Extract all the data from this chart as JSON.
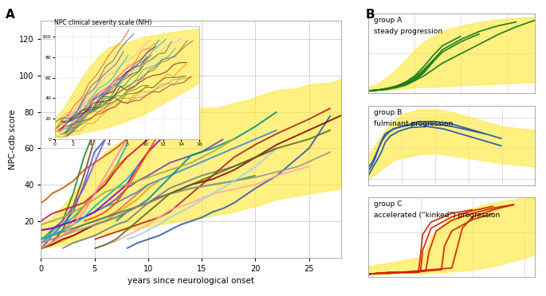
{
  "title_A": "A",
  "title_B": "B",
  "xlabel": "years since neurological onset",
  "ylabel": "NPC-cdb score",
  "xlim": [
    0,
    28
  ],
  "ylim": [
    0,
    130
  ],
  "yticks": [
    20,
    40,
    60,
    80,
    100,
    120
  ],
  "xticks": [
    0,
    5,
    10,
    15,
    20,
    25
  ],
  "inset_title": "NPC clinical severity scale (NIH)",
  "yellow_color": "#FFE840",
  "yellow_alpha": 0.65,
  "group_A_color": "#1A7A1A",
  "group_B_color": "#2255AA",
  "group_C_color": "#CC2200",
  "main_lines": [
    {
      "x": [
        0,
        0.5,
        1,
        2,
        3,
        4,
        5
      ],
      "y": [
        5,
        6,
        8,
        15,
        28,
        45,
        65
      ],
      "color": "#8B4513",
      "lw": 1.4
    },
    {
      "x": [
        0,
        0.5,
        1,
        2,
        3,
        4,
        5
      ],
      "y": [
        10,
        12,
        15,
        20,
        35,
        55,
        70
      ],
      "color": "#228B22",
      "lw": 1.4
    },
    {
      "x": [
        0,
        0.5,
        1,
        2,
        3,
        4,
        5,
        6
      ],
      "y": [
        5,
        8,
        12,
        18,
        25,
        40,
        58,
        65
      ],
      "color": "#3366CC",
      "lw": 1.4
    },
    {
      "x": [
        0,
        0.5,
        1,
        2,
        3,
        4,
        5,
        6,
        7
      ],
      "y": [
        8,
        10,
        14,
        20,
        28,
        38,
        52,
        65,
        70
      ],
      "color": "#8855CC",
      "lw": 1.4
    },
    {
      "x": [
        0,
        0.5,
        1,
        2,
        3,
        4,
        5,
        6,
        7,
        8
      ],
      "y": [
        10,
        12,
        15,
        18,
        22,
        28,
        35,
        40,
        50,
        62
      ],
      "color": "#20B2AA",
      "lw": 1.4
    },
    {
      "x": [
        0,
        1,
        2,
        3,
        4,
        5,
        6,
        7,
        8,
        9,
        10
      ],
      "y": [
        8,
        10,
        12,
        15,
        18,
        20,
        22,
        25,
        30,
        35,
        40
      ],
      "color": "#FF6347",
      "lw": 1.4
    },
    {
      "x": [
        0,
        1,
        2,
        3,
        4,
        5,
        6,
        7,
        8,
        9,
        10,
        11
      ],
      "y": [
        5,
        7,
        9,
        12,
        15,
        18,
        20,
        24,
        28,
        32,
        38,
        42
      ],
      "color": "#DAA520",
      "lw": 1.4
    },
    {
      "x": [
        0,
        1,
        2,
        3,
        4,
        5,
        6,
        7,
        8
      ],
      "y": [
        10,
        12,
        15,
        20,
        28,
        35,
        42,
        50,
        55
      ],
      "color": "#FF8C00",
      "lw": 1.4
    },
    {
      "x": [
        2,
        3,
        4,
        5,
        6,
        7,
        8,
        9,
        10,
        12,
        15,
        18,
        20,
        22
      ],
      "y": [
        5,
        8,
        10,
        12,
        15,
        18,
        20,
        25,
        30,
        38,
        45,
        50,
        55,
        60
      ],
      "color": "#708090",
      "lw": 1.4
    },
    {
      "x": [
        3,
        4,
        5,
        6,
        7,
        8,
        9,
        10,
        12,
        15,
        17
      ],
      "y": [
        20,
        22,
        25,
        28,
        32,
        38,
        42,
        45,
        52,
        58,
        65
      ],
      "color": "#6644BB",
      "lw": 1.4
    },
    {
      "x": [
        0,
        1,
        2,
        3,
        4,
        5,
        6,
        7,
        8,
        9,
        10,
        12,
        14,
        16,
        18,
        20
      ],
      "y": [
        10,
        12,
        14,
        16,
        18,
        20,
        22,
        24,
        26,
        28,
        30,
        35,
        38,
        40,
        42,
        45
      ],
      "color": "#2E8B57",
      "lw": 1.4
    },
    {
      "x": [
        5,
        6,
        7,
        8,
        9,
        10,
        11,
        12,
        13,
        14,
        15,
        16,
        17,
        18,
        20,
        22,
        25,
        27
      ],
      "y": [
        10,
        12,
        14,
        16,
        18,
        20,
        22,
        25,
        30,
        35,
        40,
        45,
        50,
        55,
        62,
        68,
        76,
        82
      ],
      "color": "#B22222",
      "lw": 1.4
    },
    {
      "x": [
        0,
        1,
        2,
        3,
        4,
        5,
        6,
        7,
        8,
        9,
        10,
        12,
        14,
        16,
        18,
        20,
        22
      ],
      "y": [
        15,
        16,
        18,
        20,
        22,
        25,
        28,
        30,
        33,
        36,
        40,
        45,
        50,
        55,
        60,
        65,
        70
      ],
      "color": "#4488CC",
      "lw": 1.4
    },
    {
      "x": [
        7,
        8,
        9,
        10,
        11,
        12,
        13,
        14,
        16,
        18,
        20,
        22
      ],
      "y": [
        20,
        25,
        28,
        32,
        38,
        44,
        50,
        56,
        60,
        65,
        72,
        80
      ],
      "color": "#008B8B",
      "lw": 1.4
    },
    {
      "x": [
        0,
        0.5,
        1,
        2,
        3,
        4,
        5,
        6,
        7,
        8,
        9,
        10,
        12,
        14
      ],
      "y": [
        20,
        22,
        24,
        26,
        28,
        30,
        35,
        40,
        48,
        55,
        60,
        65,
        68,
        70
      ],
      "color": "#CC1133",
      "lw": 1.4
    },
    {
      "x": [
        8,
        9,
        10,
        11,
        12,
        13,
        14,
        15,
        16,
        17,
        18,
        20,
        22,
        25,
        27
      ],
      "y": [
        5,
        8,
        10,
        12,
        15,
        18,
        20,
        22,
        25,
        27,
        30,
        38,
        45,
        60,
        78
      ],
      "color": "#3355AA",
      "lw": 1.4
    },
    {
      "x": [
        0,
        1,
        2,
        3,
        4,
        5,
        6,
        7,
        8,
        9,
        10,
        11,
        12,
        14,
        16,
        18,
        20,
        22,
        25,
        28
      ],
      "y": [
        5,
        7,
        10,
        12,
        15,
        18,
        20,
        22,
        25,
        28,
        30,
        33,
        35,
        40,
        43,
        48,
        55,
        62,
        70,
        78
      ],
      "color": "#8B0000",
      "lw": 1.4
    },
    {
      "x": [
        0,
        1,
        2,
        3,
        4,
        5,
        6,
        7,
        8,
        9,
        10,
        12,
        14,
        16,
        18,
        20,
        22,
        24,
        27
      ],
      "y": [
        8,
        10,
        12,
        14,
        16,
        18,
        20,
        22,
        25,
        28,
        30,
        35,
        38,
        40,
        42,
        44,
        47,
        50,
        58
      ],
      "color": "#999999",
      "lw": 1.4
    },
    {
      "x": [
        5,
        6,
        7,
        8,
        9,
        10,
        11,
        12,
        14,
        16,
        20,
        22,
        25
      ],
      "y": [
        5,
        7,
        9,
        12,
        15,
        18,
        22,
        26,
        30,
        35,
        40,
        45,
        50
      ],
      "color": "#FFAAAA",
      "lw": 1.4
    },
    {
      "x": [
        0,
        1,
        2,
        3,
        4,
        5,
        6,
        7,
        8,
        9,
        10,
        11,
        12
      ],
      "y": [
        15,
        16,
        18,
        20,
        22,
        25,
        30,
        35,
        40,
        50,
        58,
        64,
        68
      ],
      "color": "#8800BB",
      "lw": 1.4
    },
    {
      "x": [
        4,
        5,
        6,
        7,
        8,
        9,
        10,
        11
      ],
      "y": [
        20,
        22,
        25,
        30,
        38,
        48,
        58,
        68
      ],
      "color": "#FF4500",
      "lw": 1.4
    },
    {
      "x": [
        0,
        1,
        2,
        3,
        4,
        5,
        6,
        7,
        8,
        9
      ],
      "y": [
        10,
        12,
        15,
        18,
        22,
        28,
        33,
        38,
        43,
        50
      ],
      "color": "#00BBCC",
      "lw": 1.4
    },
    {
      "x": [
        0,
        1,
        2,
        3,
        4,
        5,
        6,
        7,
        8,
        9,
        10,
        12,
        14,
        16,
        18
      ],
      "y": [
        18,
        20,
        22,
        25,
        28,
        32,
        36,
        38,
        40,
        42,
        44,
        48,
        52,
        58,
        65
      ],
      "color": "#AAAA44",
      "lw": 1.4
    },
    {
      "x": [
        0,
        1,
        2,
        3,
        4,
        5,
        6,
        7,
        8
      ],
      "y": [
        5,
        8,
        12,
        18,
        25,
        35,
        45,
        55,
        65
      ],
      "color": "#FF88BB",
      "lw": 1.4
    },
    {
      "x": [
        8,
        9,
        10,
        11,
        12,
        14,
        16,
        18,
        20,
        22
      ],
      "y": [
        10,
        12,
        15,
        18,
        22,
        28,
        35,
        42,
        50,
        60
      ],
      "color": "#AACCEE",
      "lw": 1.4
    },
    {
      "x": [
        0,
        0.5,
        1,
        2,
        3,
        4,
        5,
        6,
        7,
        8
      ],
      "y": [
        30,
        32,
        35,
        38,
        42,
        48,
        52,
        56,
        60,
        65
      ],
      "color": "#CC5500",
      "lw": 1.4
    },
    {
      "x": [
        5,
        6,
        7,
        8,
        9,
        10,
        11,
        12,
        14,
        16,
        18,
        20,
        22,
        25,
        27
      ],
      "y": [
        5,
        7,
        10,
        15,
        20,
        25,
        30,
        35,
        40,
        45,
        50,
        55,
        60,
        65,
        70
      ],
      "color": "#556B22",
      "lw": 1.4
    }
  ],
  "yellow_band_main_x": [
    0,
    1,
    2,
    3,
    4,
    5,
    6,
    7,
    8,
    9,
    10,
    11,
    12,
    13,
    14,
    15,
    16,
    17,
    18,
    19,
    20,
    21,
    22,
    24,
    25,
    27,
    28
  ],
  "yellow_band_main_lo": [
    5,
    6,
    7,
    8,
    10,
    12,
    13,
    14,
    15,
    16,
    17,
    18,
    19,
    20,
    21,
    22,
    23,
    24,
    25,
    27,
    28,
    30,
    32,
    34,
    35,
    37,
    38
  ],
  "yellow_band_main_hi": [
    18,
    22,
    28,
    35,
    42,
    50,
    58,
    62,
    65,
    68,
    72,
    75,
    77,
    78,
    80,
    82,
    82,
    83,
    85,
    86,
    88,
    90,
    92,
    93,
    95,
    96,
    98
  ],
  "group_A_band_x": [
    0,
    1,
    2,
    3,
    4,
    5,
    6,
    7,
    8,
    9,
    10,
    12,
    14,
    16,
    18
  ],
  "group_A_band_lo": [
    2,
    3,
    4,
    5,
    6,
    7,
    8,
    8,
    9,
    9,
    10,
    11,
    12,
    13,
    14
  ],
  "group_A_band_hi": [
    8,
    12,
    20,
    30,
    42,
    55,
    65,
    72,
    78,
    82,
    85,
    90,
    93,
    95,
    96
  ],
  "group_A_lines": [
    {
      "x": [
        0,
        1,
        2,
        3,
        4,
        5,
        6,
        7,
        8,
        10,
        12,
        14,
        16
      ],
      "y": [
        3,
        4,
        6,
        9,
        13,
        20,
        30,
        42,
        55,
        68,
        78,
        85,
        90
      ]
    },
    {
      "x": [
        0,
        1,
        2,
        3,
        4,
        5,
        6,
        7,
        8,
        10,
        12
      ],
      "y": [
        3,
        4,
        5,
        8,
        12,
        18,
        28,
        40,
        52,
        65,
        75
      ]
    },
    {
      "x": [
        0,
        1,
        2,
        3,
        4,
        5,
        6,
        7,
        8,
        10
      ],
      "y": [
        3,
        4,
        6,
        9,
        14,
        22,
        34,
        48,
        60,
        72
      ]
    },
    {
      "x": [
        0,
        1,
        2,
        3,
        4,
        5,
        6,
        7
      ],
      "y": [
        3,
        4,
        5,
        7,
        10,
        16,
        26,
        40
      ]
    },
    {
      "x": [
        0,
        1,
        2,
        3,
        4,
        5,
        6,
        7,
        8,
        10,
        12,
        14,
        16,
        18
      ],
      "y": [
        3,
        4,
        6,
        8,
        12,
        16,
        22,
        30,
        38,
        50,
        62,
        74,
        84,
        92
      ]
    }
  ],
  "group_B_band_x": [
    0,
    0.5,
    1,
    1.5,
    2,
    3,
    4,
    5,
    6,
    7,
    8,
    10,
    12,
    15,
    18
  ],
  "group_B_band_lo": [
    25,
    30,
    35,
    40,
    42,
    45,
    46,
    44,
    42,
    40,
    38,
    35,
    32,
    30,
    28
  ],
  "group_B_band_hi": [
    45,
    55,
    65,
    72,
    78,
    82,
    82,
    80,
    76,
    72,
    68,
    65,
    62,
    58,
    55
  ],
  "group_B_lines": [
    {
      "x": [
        0,
        0.2,
        0.4,
        0.6,
        0.8,
        1.0,
        1.2,
        1.5,
        2,
        3,
        4,
        5,
        6,
        7,
        8
      ],
      "y": [
        35,
        38,
        44,
        50,
        56,
        60,
        63,
        66,
        68,
        70,
        70,
        68,
        65,
        62,
        58
      ]
    },
    {
      "x": [
        0,
        0.2,
        0.4,
        0.6,
        0.8,
        1.0,
        1.5,
        2,
        3,
        4,
        5,
        6,
        7
      ],
      "y": [
        32,
        36,
        42,
        50,
        57,
        62,
        66,
        68,
        72,
        72,
        70,
        66,
        62
      ]
    },
    {
      "x": [
        0,
        0.2,
        0.5,
        0.8,
        1.0,
        1.3,
        1.8,
        2.5,
        3.5,
        4.5,
        6,
        7,
        8
      ],
      "y": [
        28,
        33,
        40,
        48,
        55,
        60,
        64,
        67,
        68,
        66,
        60,
        56,
        52
      ]
    }
  ],
  "group_C_band_x": [
    0,
    1,
    2,
    3,
    4,
    5,
    5.5,
    6,
    7,
    8,
    10,
    12,
    14,
    16,
    18
  ],
  "group_C_band_lo": [
    2,
    3,
    3,
    4,
    4,
    4,
    4,
    5,
    5,
    6,
    8,
    12,
    18,
    25,
    32
  ],
  "group_C_band_hi": [
    12,
    14,
    16,
    18,
    20,
    22,
    30,
    45,
    58,
    68,
    78,
    84,
    88,
    90,
    92
  ],
  "group_C_lines": [
    {
      "x": [
        0,
        1,
        2,
        3,
        4,
        4.8,
        5.0,
        5.2,
        6,
        8,
        10,
        12
      ],
      "y": [
        3,
        4,
        5,
        5,
        5,
        5,
        6,
        30,
        55,
        68,
        75,
        80
      ]
    },
    {
      "x": [
        0,
        1,
        2,
        3,
        4,
        4.6,
        4.8,
        5.0,
        5.2,
        6,
        8,
        10
      ],
      "y": [
        3,
        4,
        4,
        5,
        5,
        5,
        6,
        25,
        48,
        62,
        72,
        76
      ]
    },
    {
      "x": [
        0,
        1,
        2,
        3,
        4,
        5,
        5.5,
        5.8,
        6.5,
        8,
        10,
        12,
        14
      ],
      "y": [
        3,
        4,
        4,
        5,
        5,
        6,
        7,
        28,
        52,
        64,
        72,
        78,
        82
      ]
    },
    {
      "x": [
        0,
        1,
        2,
        3,
        4,
        5,
        6,
        7.0,
        7.3,
        8,
        10,
        12
      ],
      "y": [
        3,
        4,
        4,
        5,
        5,
        6,
        7,
        8,
        35,
        52,
        65,
        72
      ]
    },
    {
      "x": [
        0,
        1,
        2,
        3,
        4,
        5,
        6,
        7,
        8,
        8.5,
        9.0,
        10,
        12,
        14
      ],
      "y": [
        3,
        4,
        5,
        5,
        6,
        7,
        8,
        9,
        10,
        32,
        55,
        68,
        76,
        82
      ]
    }
  ]
}
